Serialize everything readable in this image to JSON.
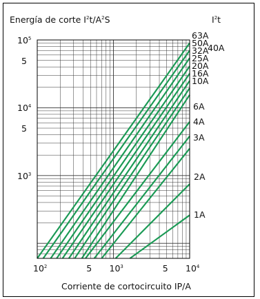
{
  "chart_data": {
    "type": "line",
    "title": "Energía de corte I²t/A²S",
    "corner_label": "I²t",
    "xlabel": "Corriente de cortocircuito IP/A",
    "ylabel": "Energía de corte I²t/A²S",
    "x_scale": "log",
    "y_scale": "log",
    "xlim": [
      100,
      10000
    ],
    "ylim": [
      60,
      100000
    ],
    "grid": true,
    "x_ticks": [
      {
        "base": "10",
        "exp": "2",
        "value": 100
      },
      {
        "base": "5",
        "exp": "",
        "value": 500
      },
      {
        "base": "10",
        "exp": "3",
        "value": 1000
      },
      {
        "base": "5",
        "exp": "",
        "value": 5000
      },
      {
        "base": "10",
        "exp": "4",
        "value": 10000
      }
    ],
    "y_ticks": [
      {
        "base": "10",
        "exp": "5",
        "value": 100000
      },
      {
        "base": "5",
        "exp": "",
        "value": 50000
      },
      {
        "base": "10",
        "exp": "4",
        "value": 10000
      },
      {
        "base": "5",
        "exp": "",
        "value": 5000
      },
      {
        "base": "10",
        "exp": "3",
        "value": 1000
      }
    ],
    "line_color": "#1b9a55",
    "series": [
      {
        "name": "63A",
        "x": [
          100,
          10000
        ],
        "y": [
          60,
          90000
        ]
      },
      {
        "name": "50A",
        "x": [
          120,
          10000
        ],
        "y": [
          60,
          70000
        ]
      },
      {
        "name": "32A",
        "x": [
          150,
          10000
        ],
        "y": [
          60,
          54000
        ]
      },
      {
        "name": "40A",
        "x": [
          180,
          10000
        ],
        "y": [
          60,
          41000
        ]
      },
      {
        "name": "25A",
        "x": [
          215,
          10000
        ],
        "y": [
          60,
          32000
        ]
      },
      {
        "name": "20A",
        "x": [
          260,
          10000
        ],
        "y": [
          60,
          25000
        ]
      },
      {
        "name": "16A",
        "x": [
          310,
          10000
        ],
        "y": [
          60,
          19500
        ]
      },
      {
        "name": "10A",
        "x": [
          385,
          10000
        ],
        "y": [
          60,
          15500
        ]
      },
      {
        "name": "6A",
        "x": [
          430,
          10000
        ],
        "y": [
          60,
          6200
        ]
      },
      {
        "name": "4A",
        "x": [
          560,
          10000
        ],
        "y": [
          60,
          3800
        ]
      },
      {
        "name": "3A",
        "x": [
          700,
          10000
        ],
        "y": [
          60,
          2500
        ]
      },
      {
        "name": "2A",
        "x": [
          1070,
          10000
        ],
        "y": [
          60,
          750
        ]
      },
      {
        "name": "1A",
        "x": [
          1650,
          10000
        ],
        "y": [
          60,
          260
        ]
      }
    ]
  }
}
